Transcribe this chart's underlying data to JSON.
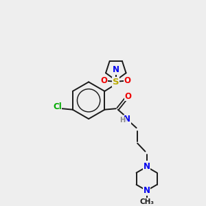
{
  "background_color": "#eeeeee",
  "bond_color": "#1a1a1a",
  "N_color": "#0000ee",
  "O_color": "#ee0000",
  "S_color": "#bbaa00",
  "Cl_color": "#00aa00",
  "H_color": "#888888",
  "figsize": [
    3.0,
    3.0
  ],
  "dpi": 100,
  "xlim": [
    0,
    10
  ],
  "ylim": [
    0,
    10
  ]
}
